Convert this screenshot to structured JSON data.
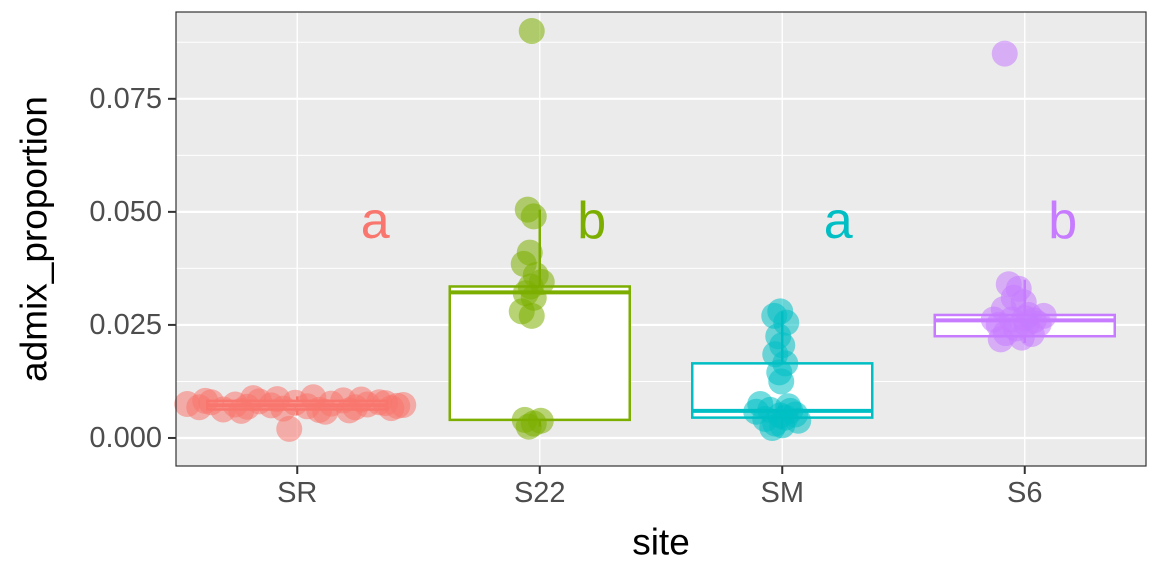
{
  "figure": {
    "background": "#FFFFFF",
    "panel_bg": "#EBEBEB",
    "grid_major": "#FFFFFF",
    "grid_minor": "#FFFFFF",
    "panel_border": "#333333"
  },
  "axes": {
    "y_title": "admix_proportion",
    "x_title": "site",
    "y_domain": [
      -0.0062,
      0.0942
    ],
    "y_ticks": [
      {
        "value": 0.0,
        "label": "0.000"
      },
      {
        "value": 0.025,
        "label": "0.025"
      },
      {
        "value": 0.05,
        "label": "0.050"
      },
      {
        "value": 0.075,
        "label": "0.075"
      }
    ],
    "y_minor": [
      0.0125,
      0.0375,
      0.0625,
      0.0875
    ]
  },
  "chart_data": {
    "type": "boxplot",
    "subtype": "boxplot_with_jitter_points",
    "x_categories": [
      "SR",
      "S22",
      "SM",
      "S6"
    ],
    "point_opacity": 0.55,
    "point_radius": 13,
    "groups": [
      {
        "site": "SR",
        "color": "#F8766D",
        "letter": "a",
        "letter_dx": 78,
        "letter_y": 0.048,
        "box": {
          "q1": 0.0063,
          "median": 0.0072,
          "q3": 0.0082,
          "whisker_low": 0.005,
          "whisker_high": 0.0092
        },
        "points": [
          [
            -110,
            0.0075
          ],
          [
            -98,
            0.0068
          ],
          [
            -86,
            0.0079
          ],
          [
            -74,
            0.0063
          ],
          [
            -62,
            0.0074
          ],
          [
            -50,
            0.0069
          ],
          [
            -38,
            0.0081
          ],
          [
            -26,
            0.0072
          ],
          [
            -14,
            0.0065
          ],
          [
            -2,
            0.0078
          ],
          [
            10,
            0.007
          ],
          [
            22,
            0.0062
          ],
          [
            34,
            0.0076
          ],
          [
            46,
            0.0083
          ],
          [
            58,
            0.0068
          ],
          [
            70,
            0.0074
          ],
          [
            82,
            0.0079
          ],
          [
            94,
            0.0066
          ],
          [
            106,
            0.0073
          ],
          [
            -92,
            0.0082
          ],
          [
            -56,
            0.006
          ],
          [
            -20,
            0.0086
          ],
          [
            16,
            0.009
          ],
          [
            52,
            0.0061
          ],
          [
            88,
            0.0077
          ],
          [
            -44,
            0.0088
          ],
          [
            28,
            0.0058
          ],
          [
            64,
            0.0085
          ],
          [
            -8,
            0.002
          ],
          [
            100,
            0.0071
          ]
        ]
      },
      {
        "site": "S22",
        "color": "#7CAE00",
        "letter": "b",
        "letter_dx": 52,
        "letter_y": 0.048,
        "box": {
          "q1": 0.004,
          "median": 0.0322,
          "q3": 0.0335,
          "whisker_low": 0.0025,
          "whisker_high": 0.0505
        },
        "points": [
          [
            -8,
            0.09
          ],
          [
            -12,
            0.0505
          ],
          [
            -6,
            0.049
          ],
          [
            -10,
            0.041
          ],
          [
            -16,
            0.0385
          ],
          [
            -4,
            0.036
          ],
          [
            2,
            0.0345
          ],
          [
            -9,
            0.0335
          ],
          [
            -14,
            0.032
          ],
          [
            -6,
            0.031
          ],
          [
            -18,
            0.028
          ],
          [
            -8,
            0.027
          ],
          [
            -15,
            0.004
          ],
          [
            -6,
            0.0032
          ],
          [
            -11,
            0.0025
          ],
          [
            1,
            0.0038
          ]
        ]
      },
      {
        "site": "SM",
        "color": "#00BFC4",
        "letter": "a",
        "letter_dx": 56,
        "letter_y": 0.048,
        "box": {
          "q1": 0.0045,
          "median": 0.006,
          "q3": 0.0165,
          "whisker_low": 0.002,
          "whisker_high": 0.028
        },
        "points": [
          [
            -2,
            0.028
          ],
          [
            -8,
            0.027
          ],
          [
            4,
            0.0255
          ],
          [
            -4,
            0.0225
          ],
          [
            0,
            0.0205
          ],
          [
            -7,
            0.0185
          ],
          [
            3,
            0.0165
          ],
          [
            -3,
            0.0145
          ],
          [
            -1,
            0.0125
          ],
          [
            -22,
            0.0075
          ],
          [
            -12,
            0.0062
          ],
          [
            -2,
            0.005
          ],
          [
            8,
            0.006
          ],
          [
            -17,
            0.0042
          ],
          [
            -7,
            0.0032
          ],
          [
            3,
            0.0045
          ],
          [
            13,
            0.0052
          ],
          [
            -10,
            0.0022
          ],
          [
            0,
            0.0028
          ],
          [
            6,
            0.007
          ],
          [
            -26,
            0.0058
          ],
          [
            16,
            0.0038
          ]
        ]
      },
      {
        "site": "S6",
        "color": "#C77CFF",
        "letter": "b",
        "letter_dx": 38,
        "letter_y": 0.048,
        "box": {
          "q1": 0.0225,
          "median": 0.026,
          "q3": 0.0272,
          "whisker_low": 0.021,
          "whisker_high": 0.035
        },
        "points": [
          [
            -20,
            0.085
          ],
          [
            -16,
            0.034
          ],
          [
            -6,
            0.033
          ],
          [
            -11,
            0.031
          ],
          [
            -1,
            0.03
          ],
          [
            -21,
            0.0285
          ],
          [
            4,
            0.0272
          ],
          [
            -13,
            0.0262
          ],
          [
            2,
            0.0252
          ],
          [
            -26,
            0.025
          ],
          [
            -9,
            0.0242
          ],
          [
            9,
            0.026
          ],
          [
            -19,
            0.0232
          ],
          [
            -3,
            0.0222
          ],
          [
            7,
            0.023
          ],
          [
            14,
            0.0252
          ],
          [
            -31,
            0.0262
          ],
          [
            19,
            0.027
          ],
          [
            -24,
            0.0218
          ],
          [
            0,
            0.0265
          ]
        ]
      }
    ]
  }
}
